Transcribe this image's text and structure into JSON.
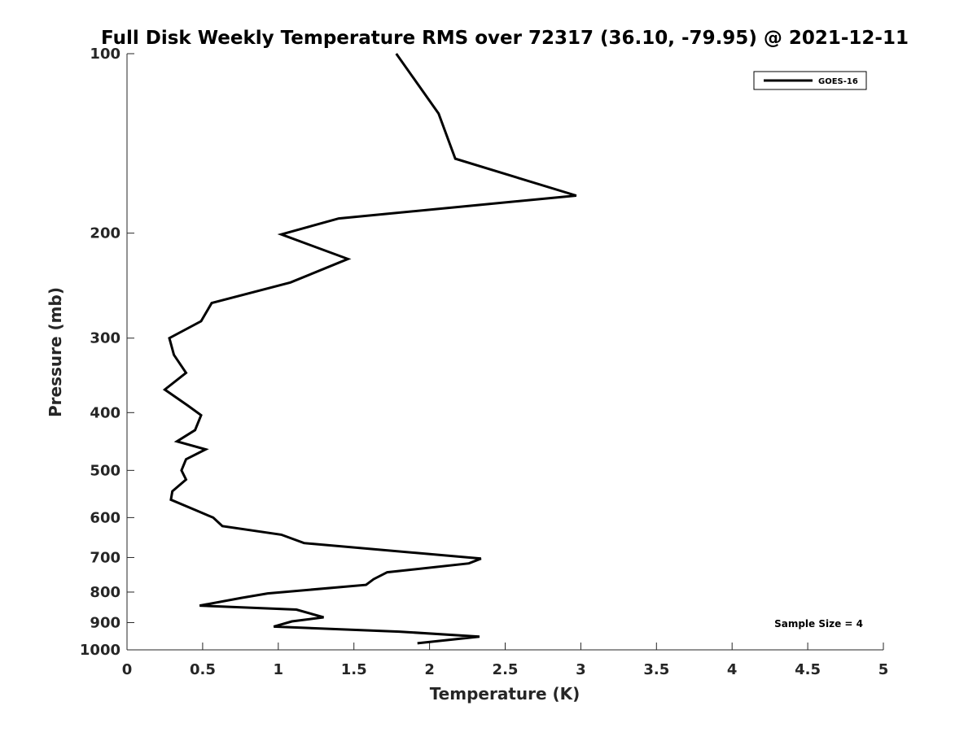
{
  "chart_data": {
    "type": "line",
    "title": "Full Disk Weekly Temperature RMS over 72317 (36.10, -79.95) @ 2021-12-11",
    "xlabel": "Temperature (K)",
    "ylabel": "Pressure (mb)",
    "xlim": [
      0,
      5
    ],
    "ylim": [
      1000,
      100
    ],
    "yscale": "log",
    "y_reversed": true,
    "xticks": [
      0,
      0.5,
      1,
      1.5,
      2,
      2.5,
      3,
      3.5,
      4,
      4.5,
      5
    ],
    "xtick_labels": [
      "0",
      "0.5",
      "1",
      "1.5",
      "2",
      "2.5",
      "3",
      "3.5",
      "4",
      "4.5",
      "5"
    ],
    "yticks": [
      100,
      200,
      300,
      400,
      500,
      600,
      700,
      800,
      900,
      1000
    ],
    "ytick_labels": [
      "100",
      "200",
      "300",
      "400",
      "500",
      "600",
      "700",
      "800",
      "900",
      "1000"
    ],
    "grid": false,
    "legend_position": "top-right",
    "annotation": "Sample Size = 4",
    "series": [
      {
        "name": "GOES-16",
        "color": "#000000",
        "points": [
          [
            1.78,
            100
          ],
          [
            2.06,
            126
          ],
          [
            2.17,
            150
          ],
          [
            2.97,
            173
          ],
          [
            1.4,
            189
          ],
          [
            1.02,
            201
          ],
          [
            1.46,
            221
          ],
          [
            1.08,
            242
          ],
          [
            0.56,
            262
          ],
          [
            0.49,
            281
          ],
          [
            0.28,
            300
          ],
          [
            0.31,
            320
          ],
          [
            0.39,
            343
          ],
          [
            0.25,
            366
          ],
          [
            0.4,
            389
          ],
          [
            0.49,
            404
          ],
          [
            0.45,
            428
          ],
          [
            0.33,
            447
          ],
          [
            0.52,
            461
          ],
          [
            0.39,
            479
          ],
          [
            0.36,
            500
          ],
          [
            0.39,
            518
          ],
          [
            0.3,
            542
          ],
          [
            0.29,
            560
          ],
          [
            0.46,
            584
          ],
          [
            0.57,
            600
          ],
          [
            0.63,
            620
          ],
          [
            1.02,
            641
          ],
          [
            1.17,
            662
          ],
          [
            2.34,
            703
          ],
          [
            2.26,
            716
          ],
          [
            1.72,
            741
          ],
          [
            1.63,
            761
          ],
          [
            1.58,
            778
          ],
          [
            0.93,
            804
          ],
          [
            0.76,
            818
          ],
          [
            0.48,
            843
          ],
          [
            1.12,
            856
          ],
          [
            1.3,
            882
          ],
          [
            1.09,
            896
          ],
          [
            0.97,
            914
          ],
          [
            1.8,
            932
          ],
          [
            2.33,
            950
          ],
          [
            1.92,
            975
          ]
        ]
      }
    ]
  }
}
